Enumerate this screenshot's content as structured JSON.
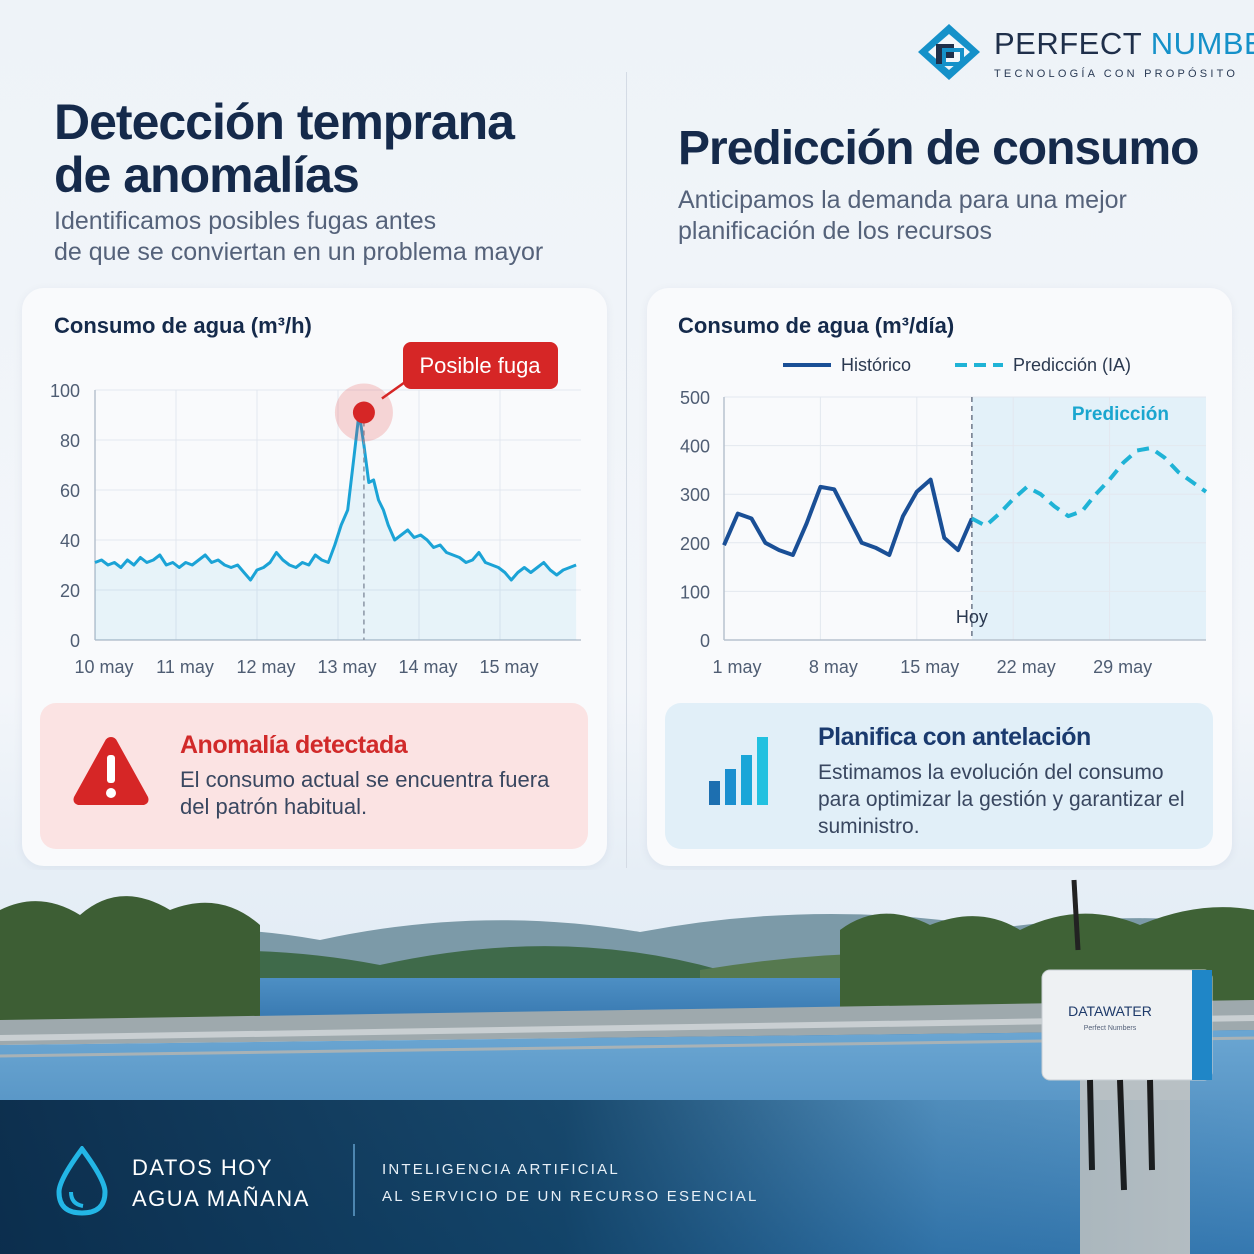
{
  "brand": {
    "name_part1": "PERFECT",
    "name_part2": "NUMBERS",
    "tagline": "TECNOLOGÍA CON PROPÓSITO",
    "colors": {
      "navy": "#152a4b",
      "accent": "#1591c9"
    }
  },
  "left": {
    "title_line1": "Detección temprana",
    "title_line2": "de anomalías",
    "subtitle_line1": "Identificamos posibles fugas antes",
    "subtitle_line2": "de que se conviertan en un problema mayor",
    "alert": {
      "icon": "warning-triangle-icon",
      "title": "Anomalía detectada",
      "text": "El consumo actual se encuentra fuera del patrón habitual."
    }
  },
  "right": {
    "title": "Predicción de consumo",
    "subtitle_line1": "Anticipamos la demanda para una mejor",
    "subtitle_line2": "planificación de los recursos",
    "plan": {
      "icon": "bar-chart-icon",
      "title": "Planifica con antelación",
      "text": "Estimamos la evolución del consumo para optimizar la gestión y garantizar el suministro."
    }
  },
  "chart_data": [
    {
      "type": "line",
      "title": "Consumo de agua (m³/h)",
      "ylim": [
        0,
        100
      ],
      "yticks": [
        "0",
        "20",
        "40",
        "60",
        "80",
        "100"
      ],
      "xticks": [
        "10 may",
        "11 may",
        "12 may",
        "13 may",
        "14 may",
        "15 may"
      ],
      "x_range": [
        0,
        6
      ],
      "grid": true,
      "color": "#1ba3d6",
      "annotation": {
        "label": "Posible fuga",
        "x": 3.32,
        "y": 91
      },
      "series": [
        {
          "x": [
            0,
            0.08,
            0.16,
            0.24,
            0.32,
            0.4,
            0.48,
            0.56,
            0.64,
            0.72,
            0.8,
            0.88,
            0.96,
            1.04,
            1.12,
            1.2,
            1.28,
            1.36,
            1.44,
            1.52,
            1.6,
            1.68,
            1.76,
            1.84,
            1.92,
            2.0,
            2.08,
            2.16,
            2.24,
            2.32,
            2.4,
            2.48,
            2.56,
            2.64,
            2.72,
            2.8,
            2.88,
            2.96,
            3.04,
            3.12,
            3.2,
            3.26,
            3.32,
            3.38,
            3.44,
            3.5,
            3.56,
            3.62,
            3.7,
            3.78,
            3.86,
            3.94,
            4.02,
            4.1,
            4.18,
            4.26,
            4.34,
            4.42,
            4.5,
            4.58,
            4.66,
            4.74,
            4.82,
            4.9,
            4.98,
            5.06,
            5.14,
            5.22,
            5.3,
            5.38,
            5.46,
            5.54,
            5.62,
            5.7,
            5.78,
            5.86,
            5.94
          ],
          "values": [
            31,
            32,
            30,
            31,
            29,
            32,
            30,
            33,
            31,
            32,
            34,
            30,
            31,
            29,
            31,
            30,
            32,
            34,
            31,
            32,
            30,
            29,
            30,
            27,
            24,
            28,
            29,
            31,
            35,
            32,
            30,
            29,
            31,
            30,
            34,
            32,
            31,
            38,
            46,
            52,
            74,
            91,
            78,
            63,
            64,
            56,
            52,
            46,
            40,
            42,
            44,
            41,
            42,
            40,
            37,
            38,
            35,
            34,
            33,
            31,
            32,
            35,
            31,
            30,
            29,
            27,
            24,
            27,
            29,
            27,
            29,
            31,
            28,
            26,
            28,
            29,
            30
          ]
        }
      ]
    },
    {
      "type": "line",
      "title": "Consumo de agua (m³/día)",
      "ylim": [
        0,
        500
      ],
      "yticks": [
        "0",
        "100",
        "200",
        "300",
        "400",
        "500"
      ],
      "xticks": [
        "1 may",
        "8 may",
        "15 may",
        "22 may",
        "29 may"
      ],
      "x_range": [
        1,
        36
      ],
      "grid": true,
      "legend": "top",
      "marker": {
        "label": "Hoy",
        "x": 19
      },
      "region_label": "Predicción",
      "series": [
        {
          "name": "Histórico",
          "color": "#1a4f96",
          "style": "solid",
          "x": [
            1,
            2,
            3,
            4,
            5,
            6,
            7,
            8,
            9,
            10,
            11,
            12,
            13,
            14,
            15,
            16,
            17,
            18,
            19
          ],
          "values": [
            195,
            260,
            250,
            200,
            185,
            175,
            240,
            315,
            310,
            255,
            200,
            190,
            175,
            255,
            305,
            330,
            210,
            185,
            250
          ]
        },
        {
          "name": "Predicción (IA)",
          "color": "#1fb3d6",
          "style": "dashed",
          "x": [
            19,
            20,
            21,
            22,
            23,
            24,
            25,
            26,
            27,
            28,
            29,
            30,
            31,
            32,
            33,
            34,
            35,
            36
          ],
          "values": [
            250,
            235,
            260,
            290,
            315,
            300,
            275,
            255,
            265,
            300,
            330,
            365,
            390,
            395,
            375,
            345,
            325,
            305
          ]
        }
      ]
    }
  ],
  "device": {
    "label": "DATAWATER",
    "sublabel": "Perfect Numbers"
  },
  "footer": {
    "icon": "water-drop-icon",
    "left_line1": "DATOS HOY",
    "left_line2": "AGUA MAÑANA",
    "right_line1": "INTELIGENCIA ARTIFICIAL",
    "right_line2": "AL SERVICIO DE UN RECURSO ESENCIAL"
  }
}
